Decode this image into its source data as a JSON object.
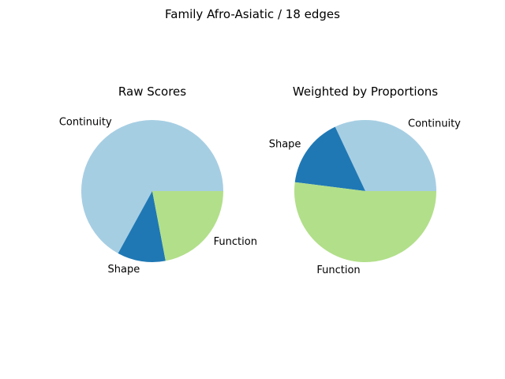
{
  "figure": {
    "title": "Family Afro-Asiatic / 18 edges"
  },
  "chart_data": [
    {
      "type": "pie",
      "title": "Raw Scores",
      "slices": [
        {
          "label": "Continuity",
          "value": 0.67,
          "color": "#a6cee3"
        },
        {
          "label": "Shape",
          "value": 0.11,
          "color": "#1f78b4"
        },
        {
          "label": "Function",
          "value": 0.22,
          "color": "#b2df8a"
        }
      ],
      "start_angle_deg": 0,
      "direction": "counterclockwise",
      "legend": "none"
    },
    {
      "type": "pie",
      "title": "Weighted by Proportions",
      "slices": [
        {
          "label": "Continuity",
          "value": 0.32,
          "color": "#a6cee3"
        },
        {
          "label": "Shape",
          "value": 0.16,
          "color": "#1f78b4"
        },
        {
          "label": "Function",
          "value": 0.52,
          "color": "#b2df8a"
        }
      ],
      "start_angle_deg": 0,
      "direction": "counterclockwise",
      "legend": "none"
    }
  ]
}
